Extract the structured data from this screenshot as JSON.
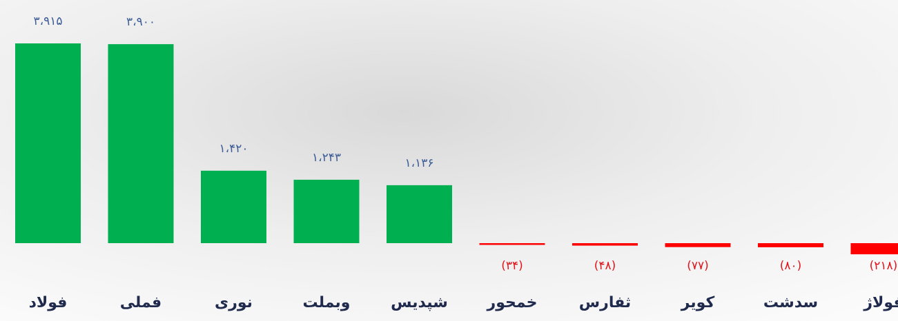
{
  "chart_data": {
    "type": "bar",
    "categories": [
      "فولاد",
      "فملی",
      "نوری",
      "وبملت",
      "شپدیس",
      "خمحور",
      "ثفارس",
      "کویر",
      "سدشت",
      "فولاژ"
    ],
    "values": [
      3915,
      3900,
      1420,
      1243,
      1136,
      -34,
      -48,
      -77,
      -80,
      -218
    ],
    "value_labels": [
      "۳،۹۱۵",
      "۳،۹۰۰",
      "۱،۴۲۰",
      "۱،۲۴۳",
      "۱،۱۳۶",
      "(۳۴)",
      "(۴۸)",
      "(۷۷)",
      "(۸۰)",
      "(۲۱۸)"
    ],
    "color": "#00b050",
    "negative_color": "#ff0000"
  }
}
